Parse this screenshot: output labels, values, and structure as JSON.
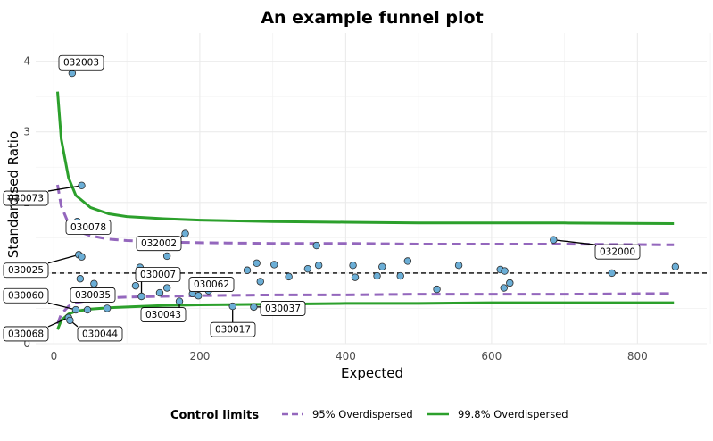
{
  "chart_data": {
    "type": "scatter",
    "title": "An example funnel plot",
    "xlabel": "Expected",
    "ylabel": "Standardised Ratio",
    "xlim": [
      -25,
      895
    ],
    "ylim": [
      0,
      4.4
    ],
    "xticks": [
      0,
      200,
      400,
      600,
      800
    ],
    "yticks": [
      0,
      1,
      2,
      3,
      4
    ],
    "grid": true,
    "reference_line": 1,
    "legend": {
      "title": "Control limits",
      "position": "bottom",
      "items": [
        {
          "name": "95% Overdispersed",
          "color": "#9467bd",
          "style": "dashed"
        },
        {
          "name": "99.8% Overdispersed",
          "color": "#2ca02c",
          "style": "solid"
        }
      ]
    },
    "point_color": "#6baed6",
    "points": [
      {
        "x": 25,
        "y": 3.83
      },
      {
        "x": 38,
        "y": 2.24
      },
      {
        "x": 32,
        "y": 1.73
      },
      {
        "x": 34,
        "y": 1.26
      },
      {
        "x": 38,
        "y": 1.23
      },
      {
        "x": 180,
        "y": 1.56
      },
      {
        "x": 360,
        "y": 1.39
      },
      {
        "x": 685,
        "y": 1.47
      },
      {
        "x": 278,
        "y": 1.14
      },
      {
        "x": 302,
        "y": 1.12
      },
      {
        "x": 363,
        "y": 1.11
      },
      {
        "x": 410,
        "y": 1.11
      },
      {
        "x": 450,
        "y": 1.09
      },
      {
        "x": 485,
        "y": 1.17
      },
      {
        "x": 555,
        "y": 1.11
      },
      {
        "x": 118,
        "y": 1.08
      },
      {
        "x": 155,
        "y": 1.24
      },
      {
        "x": 265,
        "y": 1.04
      },
      {
        "x": 348,
        "y": 1.06
      },
      {
        "x": 612,
        "y": 1.05
      },
      {
        "x": 618,
        "y": 1.03
      },
      {
        "x": 765,
        "y": 1.0
      },
      {
        "x": 852,
        "y": 1.09
      },
      {
        "x": 322,
        "y": 0.95
      },
      {
        "x": 413,
        "y": 0.94
      },
      {
        "x": 443,
        "y": 0.96
      },
      {
        "x": 475,
        "y": 0.96
      },
      {
        "x": 36,
        "y": 0.92
      },
      {
        "x": 283,
        "y": 0.88
      },
      {
        "x": 55,
        "y": 0.85
      },
      {
        "x": 112,
        "y": 0.82
      },
      {
        "x": 155,
        "y": 0.79
      },
      {
        "x": 525,
        "y": 0.77
      },
      {
        "x": 625,
        "y": 0.86
      },
      {
        "x": 617,
        "y": 0.79
      },
      {
        "x": 145,
        "y": 0.72
      },
      {
        "x": 212,
        "y": 0.75
      },
      {
        "x": 120,
        "y": 0.67
      },
      {
        "x": 190,
        "y": 0.71
      },
      {
        "x": 198,
        "y": 0.68
      },
      {
        "x": 172,
        "y": 0.6
      },
      {
        "x": 30,
        "y": 0.48
      },
      {
        "x": 46,
        "y": 0.48
      },
      {
        "x": 73,
        "y": 0.5
      },
      {
        "x": 245,
        "y": 0.53
      },
      {
        "x": 274,
        "y": 0.52
      },
      {
        "x": 20,
        "y": 0.37
      },
      {
        "x": 22,
        "y": 0.33
      }
    ],
    "labels": [
      {
        "text": "032003",
        "x": 25,
        "y": 3.83,
        "lx": 66,
        "ly": 3.98
      },
      {
        "text": "030073",
        "x": 38,
        "y": 2.24,
        "lx": 4,
        "ly": 2.06
      },
      {
        "x": 32,
        "y": 1.73,
        "text": "030078",
        "lx": 74,
        "ly": 1.65
      },
      {
        "text": "032002",
        "x": 180,
        "y": 1.56,
        "lx": 153,
        "ly": 1.42
      },
      {
        "text": "032000",
        "x": 685,
        "y": 1.47,
        "lx": 667,
        "ly": 1.3
      },
      {
        "text": "030025",
        "x": 34,
        "y": 1.26,
        "lx": 4,
        "ly": 1.04
      },
      {
        "text": "030007",
        "x": 120,
        "y": 0.67,
        "lx": 152,
        "ly": 0.98
      },
      {
        "text": "030062",
        "x": 198,
        "y": 0.68,
        "lx": 212,
        "ly": 0.84
      },
      {
        "text": "030060",
        "x": 30,
        "y": 0.48,
        "lx": 4,
        "ly": 0.68
      },
      {
        "text": "030035",
        "x": 55,
        "y": 0.85,
        "lx": 79,
        "ly": 0.69
      },
      {
        "text": "030043",
        "x": 172,
        "y": 0.6,
        "lx": 158,
        "ly": 0.41
      },
      {
        "text": "030017",
        "x": 245,
        "y": 0.53,
        "lx": 236,
        "ly": 0.2
      },
      {
        "text": "030037",
        "x": 274,
        "y": 0.52,
        "lx": 292,
        "ly": 0.5
      },
      {
        "text": "030068",
        "x": 20,
        "y": 0.37,
        "lx": 4,
        "ly": 0.14
      },
      {
        "text": "030044",
        "x": 22,
        "y": 0.33,
        "lx": 87,
        "ly": 0.14
      }
    ],
    "limits": {
      "upper_998": {
        "x": [
          5,
          10,
          20,
          30,
          50,
          75,
          100,
          150,
          200,
          300,
          400,
          500,
          600,
          700,
          850
        ],
        "y": [
          3.57,
          2.9,
          2.35,
          2.1,
          1.93,
          1.84,
          1.8,
          1.77,
          1.75,
          1.73,
          1.72,
          1.71,
          1.71,
          1.71,
          1.7
        ]
      },
      "upper_95": {
        "x": [
          5,
          10,
          20,
          30,
          50,
          75,
          100,
          150,
          200,
          300,
          400,
          500,
          600,
          700,
          850
        ],
        "y": [
          2.25,
          1.95,
          1.7,
          1.6,
          1.53,
          1.48,
          1.46,
          1.44,
          1.43,
          1.42,
          1.42,
          1.41,
          1.41,
          1.41,
          1.4
        ]
      },
      "lower_95": {
        "x": [
          5,
          10,
          20,
          30,
          50,
          75,
          100,
          150,
          200,
          300,
          400,
          500,
          600,
          700,
          850
        ],
        "y": [
          0.28,
          0.42,
          0.53,
          0.58,
          0.62,
          0.65,
          0.66,
          0.67,
          0.68,
          0.69,
          0.69,
          0.7,
          0.7,
          0.7,
          0.71
        ]
      },
      "lower_998": {
        "x": [
          5,
          10,
          20,
          30,
          50,
          75,
          100,
          150,
          200,
          300,
          400,
          500,
          600,
          700,
          850
        ],
        "y": [
          0.2,
          0.33,
          0.42,
          0.46,
          0.49,
          0.51,
          0.52,
          0.54,
          0.55,
          0.56,
          0.57,
          0.57,
          0.58,
          0.58,
          0.58
        ]
      }
    }
  }
}
